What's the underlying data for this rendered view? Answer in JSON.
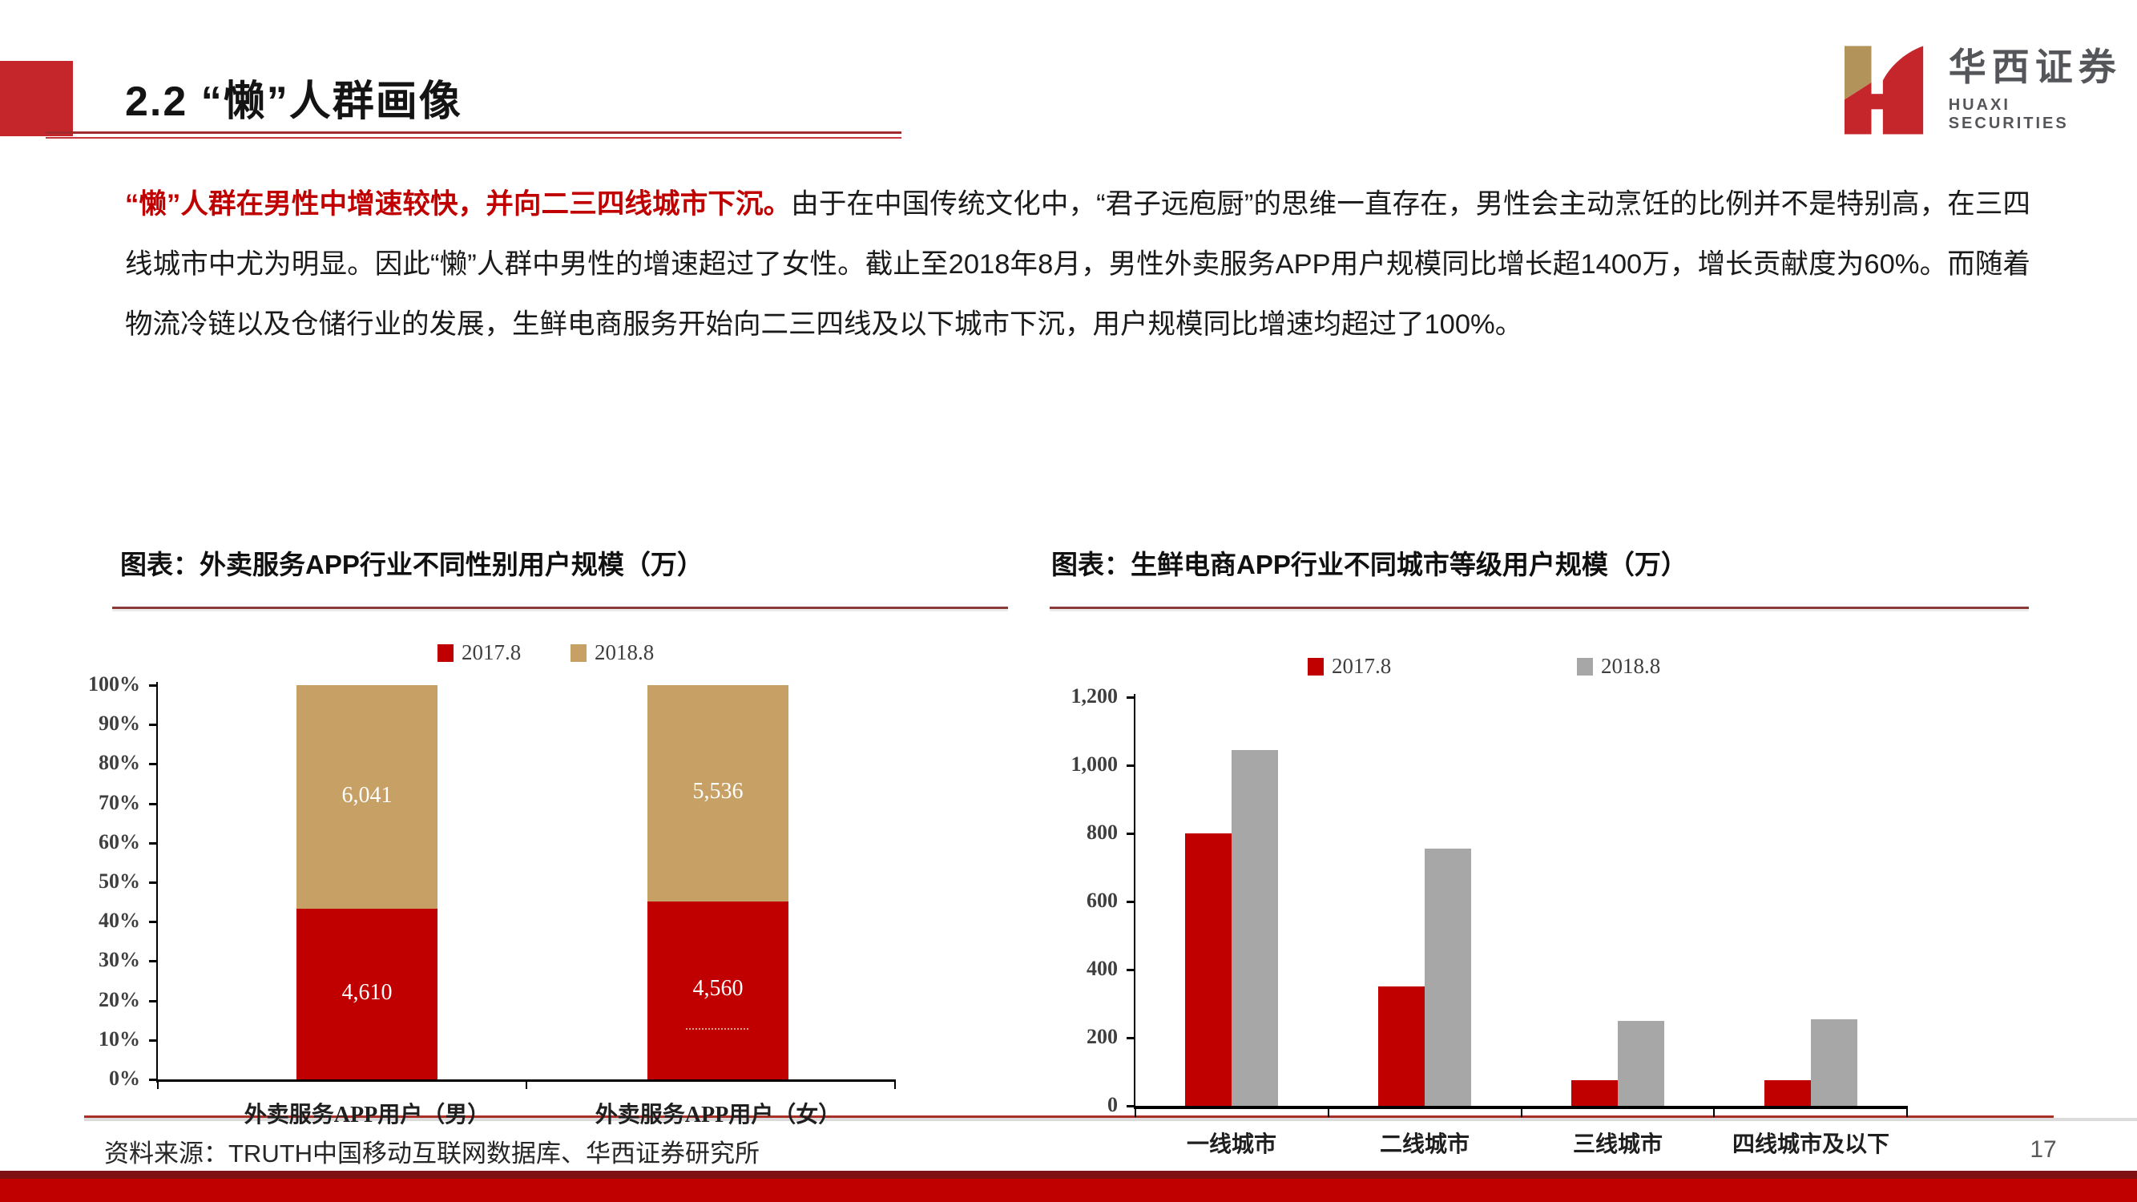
{
  "header": {
    "title": "2.2 “懒”人群画像"
  },
  "logo": {
    "cn": "华西证券",
    "en": "HUAXI SECURITIES"
  },
  "paragraph": {
    "highlight": "“懒”人群在男性中增速较快，并向二三四线城市下沉。",
    "body": "由于在中国传统文化中，“君子远庖厨”的思维一直存在，男性会主动烹饪的比例并不是特别高，在三四线城市中尤为明显。因此“懒”人群中男性的增速超过了女性。截止至2018年8月，男性外卖服务APP用户规模同比增长超1400万，增长贡献度为60%。而随着物流冷链以及仓储行业的发展，生鲜电商服务开始向二三四线及以下城市下沉，用户规模同比增速均超过了100%。"
  },
  "footer": {
    "source": "资料来源：TRUTH中国移动互联网数据库、华西证券研究所",
    "page_number": "17"
  },
  "colors": {
    "accent_red": "#C00000",
    "tan_2018": "#C7A065",
    "gray_2018": "#A7A7A7",
    "title_block_red": "#C5262C"
  },
  "chart_data": [
    {
      "type": "bar",
      "subtype": "stacked-100-percent-column",
      "title": "图表：外卖服务APP行业不同性别用户规模（万）",
      "categories": [
        "外卖服务APP用户（男）",
        "外卖服务APP用户（女）"
      ],
      "series": [
        {
          "name": "2017.8",
          "color": "#C00000",
          "values": [
            4610,
            4560
          ],
          "labels": [
            "4,610",
            "4,560"
          ]
        },
        {
          "name": "2018.8",
          "color": "#C7A065",
          "values": [
            6041,
            5536
          ],
          "labels": [
            "6,041",
            "5,536"
          ]
        }
      ],
      "ylabel": "",
      "xlabel": "",
      "ylim_percent": [
        0,
        100
      ],
      "y_ticks": [
        "100%",
        "90%",
        "80%",
        "70%",
        "60%",
        "50%",
        "40%",
        "30%",
        "20%",
        "10%",
        "0%"
      ],
      "grid": false,
      "legend_position": "top-center"
    },
    {
      "type": "bar",
      "subtype": "grouped-column",
      "title": "图表：生鲜电商APP行业不同城市等级用户规模（万）",
      "categories": [
        "一线城市",
        "二线城市",
        "三线城市",
        "四线城市及以下"
      ],
      "series": [
        {
          "name": "2017.8",
          "color": "#C00000",
          "values": [
            800,
            350,
            75,
            75
          ]
        },
        {
          "name": "2018.8",
          "color": "#A7A7A7",
          "values": [
            1045,
            755,
            250,
            255
          ]
        }
      ],
      "ylabel": "",
      "xlabel": "",
      "ylim": [
        0,
        1200
      ],
      "y_tick_step": 200,
      "y_ticks": [
        "1,200",
        "1,000",
        "800",
        "600",
        "400",
        "200",
        "0"
      ],
      "grid": false,
      "legend_position": "top-center"
    }
  ]
}
